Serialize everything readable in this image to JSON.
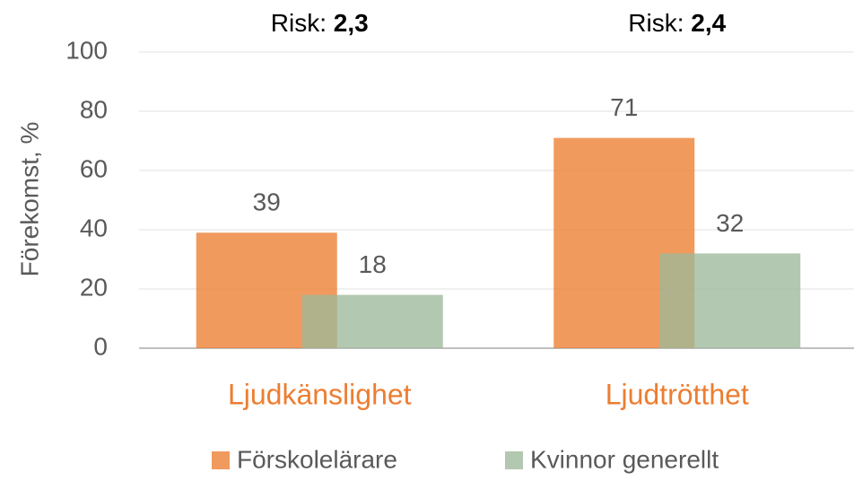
{
  "chart_data": {
    "type": "bar",
    "categories": [
      "Ljudkänslighet",
      "Ljudtrötthet"
    ],
    "series": [
      {
        "name": "Förskolelärare",
        "color": "#ED7D31",
        "values": [
          39,
          71
        ]
      },
      {
        "name": "Kvinnor generellt",
        "color": "#9DB89A",
        "values": [
          18,
          32
        ]
      }
    ],
    "annotations": [
      {
        "text": "Risk:",
        "bold": "2,3"
      },
      {
        "text": "Risk:",
        "bold": "2,4"
      }
    ],
    "y_label": "Förekomst, %",
    "ylim": [
      0,
      100
    ],
    "yticks": [
      0,
      20,
      40,
      60,
      80,
      100
    ],
    "grid": true,
    "legend": "bottom"
  }
}
